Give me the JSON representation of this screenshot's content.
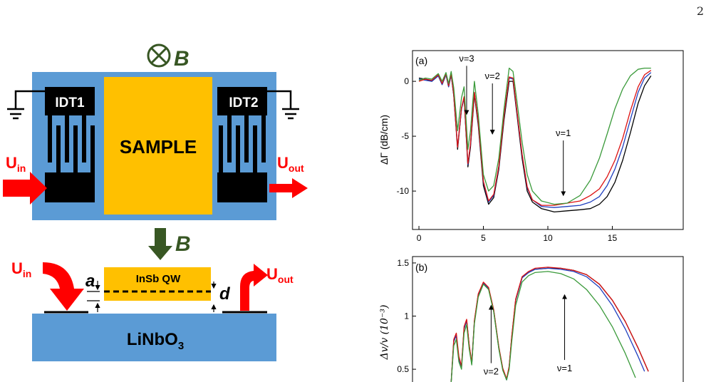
{
  "page_number": "2",
  "schematic": {
    "b_symbol": "B",
    "idt1": "IDT1",
    "idt2": "IDT2",
    "sample": "SAMPLE",
    "u_in": "U",
    "u_in_sub": "in",
    "u_out": "U",
    "u_out_sub": "out",
    "qw_label": "InSb QW",
    "substrate": "LiNbO",
    "substrate_sub": "3",
    "gap_a": "a",
    "gap_d": "d",
    "colors": {
      "substrate": "#5b9bd5",
      "sample": "#ffc000",
      "arrow": "#ff0000",
      "b_arrow": "#385723",
      "title_green": "#375623",
      "label_red": "#ff0000"
    }
  },
  "chart_data": [
    {
      "type": "line",
      "panel_label": "(a)",
      "ylabel": "ΔΓ (dB/cm)",
      "xlim": [
        -0.5,
        20.5
      ],
      "ylim": [
        -13.5,
        2.8
      ],
      "x_ticks": [
        0,
        5,
        10,
        15
      ],
      "y_ticks": [
        0,
        -5,
        -10
      ],
      "annotations": [
        {
          "text": "ν=3",
          "x": 3.7,
          "y": 1.8,
          "arrow_to": [
            3.7,
            -3.0
          ]
        },
        {
          "text": "ν=2",
          "x": 5.7,
          "y": 0.2,
          "arrow_to": [
            5.7,
            -4.8
          ]
        },
        {
          "text": "ν=1",
          "x": 11.2,
          "y": -5.0,
          "arrow_to": [
            11.2,
            -10.4
          ]
        }
      ],
      "series": [
        {
          "color": "#000000",
          "x": [
            0,
            0.5,
            1,
            1.5,
            1.8,
            2.1,
            2.3,
            2.5,
            2.7,
            3.0,
            3.3,
            3.5,
            3.8,
            4.0,
            4.3,
            4.6,
            5.0,
            5.4,
            5.8,
            6.2,
            6.6,
            7.0,
            7.3,
            7.6,
            8.0,
            8.4,
            8.8,
            9.5,
            10.5,
            11.5,
            12.5,
            13.3,
            14.0,
            14.6,
            15.2,
            15.8,
            16.4,
            17.0,
            17.5,
            18.0
          ],
          "y": [
            0.3,
            0.2,
            0.0,
            0.5,
            -0.3,
            0.6,
            -0.5,
            0.6,
            -1.3,
            -6.2,
            -2.5,
            -1.5,
            -7.8,
            -6.0,
            -1.2,
            -4.0,
            -9.5,
            -11.2,
            -10.6,
            -8.0,
            -3.5,
            0.0,
            0.0,
            -3.0,
            -7.0,
            -10.0,
            -11.0,
            -11.6,
            -11.9,
            -11.8,
            -11.7,
            -11.6,
            -11.2,
            -10.5,
            -9.2,
            -7.2,
            -4.7,
            -2.0,
            -0.4,
            0.5
          ]
        },
        {
          "color": "#1f3fbf",
          "x": [
            0,
            0.5,
            1,
            1.5,
            1.8,
            2.1,
            2.3,
            2.5,
            2.7,
            3.0,
            3.3,
            3.5,
            3.8,
            4.0,
            4.3,
            4.6,
            5.0,
            5.4,
            5.8,
            6.2,
            6.6,
            7.0,
            7.3,
            7.6,
            8.0,
            8.4,
            8.8,
            9.5,
            10.5,
            11.5,
            12.5,
            13.3,
            14.0,
            14.6,
            15.2,
            15.8,
            16.4,
            17.0,
            17.5,
            18.0
          ],
          "y": [
            0.2,
            0.1,
            0.0,
            0.5,
            -0.3,
            0.6,
            -0.5,
            0.6,
            -1.3,
            -6.0,
            -2.5,
            -1.5,
            -7.6,
            -5.8,
            -1.0,
            -3.8,
            -9.2,
            -11.0,
            -10.4,
            -7.8,
            -3.2,
            0.3,
            0.2,
            -2.8,
            -6.7,
            -9.7,
            -10.8,
            -11.4,
            -11.5,
            -11.4,
            -11.3,
            -11.0,
            -10.5,
            -9.5,
            -8.0,
            -6.0,
            -3.5,
            -1.0,
            0.3,
            0.8
          ]
        },
        {
          "color": "#dd1111",
          "x": [
            0,
            0.5,
            1,
            1.5,
            1.8,
            2.1,
            2.3,
            2.5,
            2.7,
            3.0,
            3.3,
            3.5,
            3.8,
            4.0,
            4.3,
            4.6,
            5.0,
            5.4,
            5.8,
            6.2,
            6.6,
            7.0,
            7.3,
            7.6,
            8.0,
            8.4,
            8.8,
            9.5,
            10.5,
            11.5,
            12.5,
            13.3,
            14.0,
            14.6,
            15.2,
            15.8,
            16.4,
            17.0,
            17.5,
            18.0
          ],
          "y": [
            0.0,
            0.2,
            0.1,
            0.6,
            -0.2,
            0.7,
            -0.4,
            0.7,
            -1.2,
            -6.0,
            -2.4,
            -1.4,
            -7.5,
            -5.7,
            -1.0,
            -3.7,
            -9.1,
            -10.9,
            -10.3,
            -7.7,
            -3.1,
            0.4,
            0.3,
            -2.7,
            -6.6,
            -9.6,
            -10.8,
            -11.3,
            -11.3,
            -11.1,
            -10.9,
            -10.4,
            -9.8,
            -8.7,
            -7.2,
            -5.2,
            -2.7,
            -0.5,
            0.6,
            1.0
          ]
        },
        {
          "color": "#3a9a3a",
          "x": [
            0,
            0.5,
            1,
            1.5,
            1.8,
            2.1,
            2.3,
            2.5,
            2.7,
            3.0,
            3.3,
            3.5,
            3.8,
            4.0,
            4.3,
            4.6,
            5.0,
            5.4,
            5.8,
            6.2,
            6.6,
            7.0,
            7.3,
            7.6,
            8.0,
            8.4,
            8.8,
            9.5,
            10.5,
            11.5,
            12.5,
            13.3,
            14.0,
            14.6,
            15.2,
            15.8,
            16.4,
            17.0,
            17.5,
            18.0
          ],
          "y": [
            0.1,
            0.3,
            0.2,
            0.7,
            0.0,
            0.8,
            -0.2,
            0.9,
            -0.6,
            -4.5,
            -1.5,
            -0.5,
            -6.2,
            -4.5,
            0.0,
            -3.0,
            -8.5,
            -10.0,
            -9.5,
            -7.0,
            -2.5,
            1.2,
            0.9,
            -1.8,
            -5.5,
            -8.5,
            -10.0,
            -10.9,
            -11.2,
            -11.1,
            -10.4,
            -9.0,
            -7.0,
            -4.8,
            -2.5,
            -0.7,
            0.5,
            1.1,
            1.2,
            1.2
          ]
        }
      ]
    },
    {
      "type": "line",
      "panel_label": "(b)",
      "ylabel": "Δv/v (10⁻³)",
      "xlim": [
        -0.5,
        20.5
      ],
      "ylim": [
        0.38,
        1.56
      ],
      "y_ticks": [
        1.5,
        1.0,
        0.5
      ],
      "annotations": [
        {
          "text": "ν=1",
          "x": 11.3,
          "y": 0.48,
          "arrow_to": [
            11.3,
            1.2
          ]
        },
        {
          "text": "ν=2",
          "x": 5.6,
          "y": 0.45,
          "arrow_to": [
            5.6,
            1.1
          ]
        }
      ],
      "series": [
        {
          "color": "#000000",
          "x": [
            2.5,
            2.7,
            2.9,
            3.1,
            3.3,
            3.5,
            3.7,
            3.9,
            4.1,
            4.3,
            4.6,
            5.0,
            5.4,
            5.8,
            6.2,
            6.5,
            6.8,
            7.0,
            7.2,
            7.5,
            8.0,
            8.5,
            9.0,
            10.0,
            11.0,
            12.0,
            13.0,
            14.0,
            15.0,
            16.0,
            17.0,
            17.8
          ],
          "y": [
            0.38,
            0.76,
            0.82,
            0.6,
            0.52,
            0.88,
            0.96,
            0.72,
            0.55,
            0.95,
            1.2,
            1.31,
            1.26,
            1.05,
            0.7,
            0.5,
            0.4,
            0.52,
            0.8,
            1.15,
            1.36,
            1.41,
            1.44,
            1.45,
            1.45,
            1.43,
            1.39,
            1.3,
            1.15,
            0.95,
            0.7,
            0.48
          ]
        },
        {
          "color": "#1f3fbf",
          "x": [
            2.5,
            2.7,
            2.9,
            3.1,
            3.3,
            3.5,
            3.7,
            3.9,
            4.1,
            4.3,
            4.6,
            5.0,
            5.4,
            5.8,
            6.2,
            6.5,
            6.8,
            7.0,
            7.2,
            7.5,
            8.0,
            8.5,
            9.0,
            10.0,
            11.0,
            12.0,
            13.0,
            14.0,
            15.0,
            16.0,
            17.0,
            17.5
          ],
          "y": [
            0.38,
            0.76,
            0.82,
            0.6,
            0.52,
            0.88,
            0.96,
            0.72,
            0.55,
            0.95,
            1.2,
            1.31,
            1.26,
            1.05,
            0.7,
            0.5,
            0.4,
            0.52,
            0.8,
            1.15,
            1.36,
            1.41,
            1.44,
            1.45,
            1.44,
            1.42,
            1.37,
            1.27,
            1.1,
            0.88,
            0.62,
            0.48
          ]
        },
        {
          "color": "#dd1111",
          "x": [
            2.5,
            2.7,
            2.9,
            3.1,
            3.3,
            3.5,
            3.7,
            3.9,
            4.1,
            4.3,
            4.6,
            5.0,
            5.4,
            5.8,
            6.2,
            6.5,
            6.8,
            7.0,
            7.2,
            7.5,
            8.0,
            8.5,
            9.0,
            10.0,
            11.0,
            12.0,
            13.0,
            14.0,
            15.0,
            16.0,
            17.0,
            17.8
          ],
          "y": [
            0.38,
            0.78,
            0.84,
            0.62,
            0.53,
            0.9,
            0.97,
            0.73,
            0.56,
            0.96,
            1.21,
            1.32,
            1.27,
            1.06,
            0.71,
            0.51,
            0.41,
            0.53,
            0.81,
            1.16,
            1.37,
            1.42,
            1.45,
            1.46,
            1.45,
            1.43,
            1.39,
            1.3,
            1.15,
            0.95,
            0.7,
            0.48
          ]
        },
        {
          "color": "#3a9a3a",
          "x": [
            2.5,
            2.7,
            2.9,
            3.1,
            3.3,
            3.5,
            3.7,
            3.9,
            4.1,
            4.3,
            4.6,
            5.0,
            5.4,
            5.8,
            6.2,
            6.5,
            6.8,
            7.0,
            7.2,
            7.5,
            8.0,
            8.5,
            9.0,
            10.0,
            11.0,
            12.0,
            13.0,
            14.0,
            15.0,
            16.0,
            16.8
          ],
          "y": [
            0.38,
            0.72,
            0.78,
            0.57,
            0.5,
            0.84,
            0.92,
            0.69,
            0.54,
            0.93,
            1.18,
            1.3,
            1.25,
            1.04,
            0.69,
            0.49,
            0.4,
            0.5,
            0.76,
            1.1,
            1.32,
            1.38,
            1.41,
            1.42,
            1.4,
            1.35,
            1.25,
            1.1,
            0.9,
            0.65,
            0.42
          ]
        }
      ]
    }
  ]
}
